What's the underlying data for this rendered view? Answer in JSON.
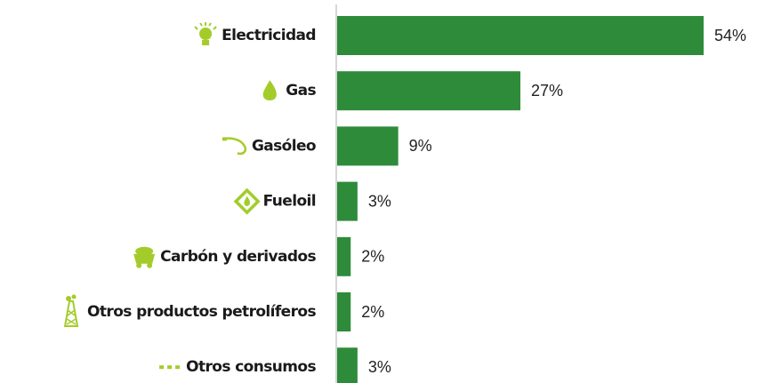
{
  "chart_data": {
    "type": "bar",
    "orientation": "horizontal",
    "categories": [
      "Electricidad",
      "Gas",
      "Gasóleo",
      "Fueloil",
      "Carbón y derivados",
      "Otros productos petrolíferos",
      "Otros consumos"
    ],
    "values": [
      54,
      27,
      9,
      3,
      2,
      2,
      3
    ],
    "value_labels": [
      "54%",
      "27%",
      "9%",
      "3%",
      "2%",
      "2%",
      "3%"
    ],
    "color": "#2e8b3a"
  }
}
